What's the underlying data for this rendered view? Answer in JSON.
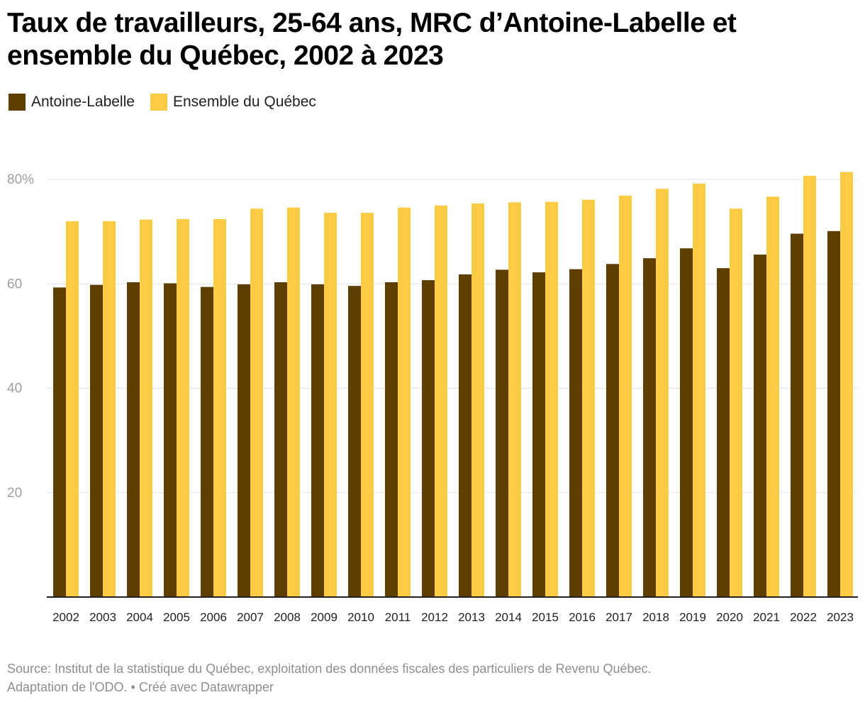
{
  "title": "Taux de travailleurs, 25-64 ans, MRC d’Antoine-Labelle et ensemble du Québec, 2002 à 2023",
  "legend": [
    {
      "label": "Antoine-Labelle",
      "color": "#5f3f00"
    },
    {
      "label": "Ensemble du Québec",
      "color": "#fecb45"
    }
  ],
  "chart_data": {
    "type": "bar",
    "categories": [
      "2002",
      "2003",
      "2004",
      "2005",
      "2006",
      "2007",
      "2008",
      "2009",
      "2010",
      "2011",
      "2012",
      "2013",
      "2014",
      "2015",
      "2016",
      "2017",
      "2018",
      "2019",
      "2020",
      "2021",
      "2022",
      "2023"
    ],
    "series": [
      {
        "name": "Antoine-Labelle",
        "color": "#5f3f00",
        "values": [
          59.3,
          59.8,
          60.3,
          60.1,
          59.4,
          59.9,
          60.3,
          59.9,
          59.6,
          60.3,
          60.7,
          61.8,
          62.7,
          62.2,
          62.8,
          63.8,
          64.9,
          66.8,
          63.0,
          65.6,
          69.6,
          70.1
        ]
      },
      {
        "name": "Ensemble du Québec",
        "color": "#fecb45",
        "values": [
          72.0,
          72.0,
          72.3,
          72.4,
          72.4,
          74.4,
          74.6,
          73.6,
          73.6,
          74.6,
          75.0,
          75.4,
          75.6,
          75.7,
          76.1,
          76.9,
          78.2,
          79.2,
          74.4,
          76.7,
          80.7,
          81.4
        ]
      }
    ],
    "yticks": [
      20,
      40,
      60,
      80
    ],
    "ytick_labels": [
      "20",
      "40",
      "60",
      "80%"
    ],
    "ylim": [
      0,
      85
    ],
    "xlabel": "",
    "ylabel": "",
    "grid": true
  },
  "footer": {
    "source": "Source: Institut de la statistique du Québec, exploitation des données fiscales des particuliers de Revenu Québec.",
    "credit": "Adaptation de l'ODO. • Créé avec Datawrapper"
  }
}
